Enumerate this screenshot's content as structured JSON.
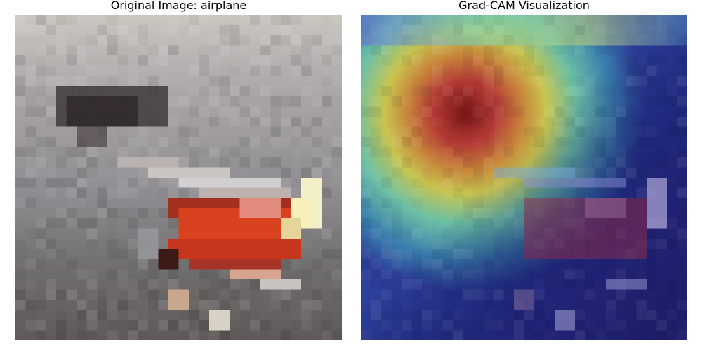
{
  "panels": {
    "original": {
      "title": "Original Image: airplane",
      "icon": "airplane-photo-pixelated"
    },
    "gradcam": {
      "title": "Grad-CAM Visualization",
      "icon": "gradcam-heatmap-overlay"
    }
  },
  "colors": {
    "background": "#ffffff",
    "sky_gray": "#8f8d90",
    "plane_red": "#d8421e",
    "heat_hot": "#8c1a1a",
    "heat_warm": "#d8c24a",
    "heat_cool": "#4ab8b0",
    "heat_cold": "#2a2a8a"
  }
}
